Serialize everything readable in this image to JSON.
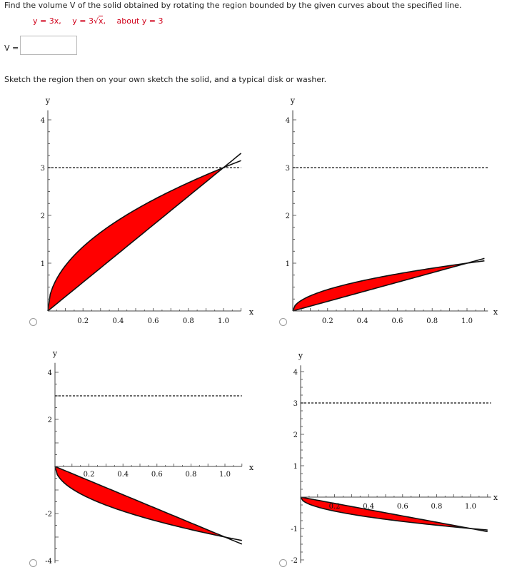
{
  "question": {
    "prompt": "Find the volume V of the solid obtained by rotating the region bounded by the given curves about the specified line.",
    "eq1": "y = 3x,",
    "eq2_prefix": "y = 3",
    "eq2_radicand": "x",
    "eq2_suffix": ",",
    "about": "about y = 3",
    "answer_label": "V =",
    "answer_value": "",
    "sketch_instruction": "Sketch the region then on your own sketch the solid, and a typical disk or washer."
  },
  "colors": {
    "region_fill": "#ff0000",
    "prompt_red": "#d0021b"
  },
  "graphs": [
    {
      "id": "a",
      "selected": false,
      "xlabel": "x",
      "ylabel": "y",
      "xticks": [
        "0.2",
        "0.4",
        "0.6",
        "0.8",
        "1.0"
      ],
      "yticks": [
        "1",
        "2",
        "3",
        "4"
      ],
      "yneg_ticks": []
    },
    {
      "id": "b",
      "selected": false,
      "xlabel": "x",
      "ylabel": "y",
      "xticks": [
        "0.2",
        "0.4",
        "0.6",
        "0.8",
        "1.0"
      ],
      "yticks": [
        "1",
        "2",
        "3",
        "4"
      ],
      "yneg_ticks": []
    },
    {
      "id": "c",
      "selected": false,
      "xlabel": "x",
      "ylabel": "y",
      "xticks": [
        "0.2",
        "0.4",
        "0.6",
        "0.8",
        "1.0"
      ],
      "yticks": [
        "2",
        "4"
      ],
      "yneg_ticks": [
        "-2",
        "-4"
      ]
    },
    {
      "id": "d",
      "selected": false,
      "xlabel": "x",
      "ylabel": "y",
      "xticks": [
        "0.2",
        "0.4",
        "0.6",
        "0.8",
        "1.0"
      ],
      "yticks": [
        "1",
        "2",
        "3",
        "4"
      ],
      "yneg_ticks": [
        "-1",
        "-2"
      ]
    }
  ]
}
